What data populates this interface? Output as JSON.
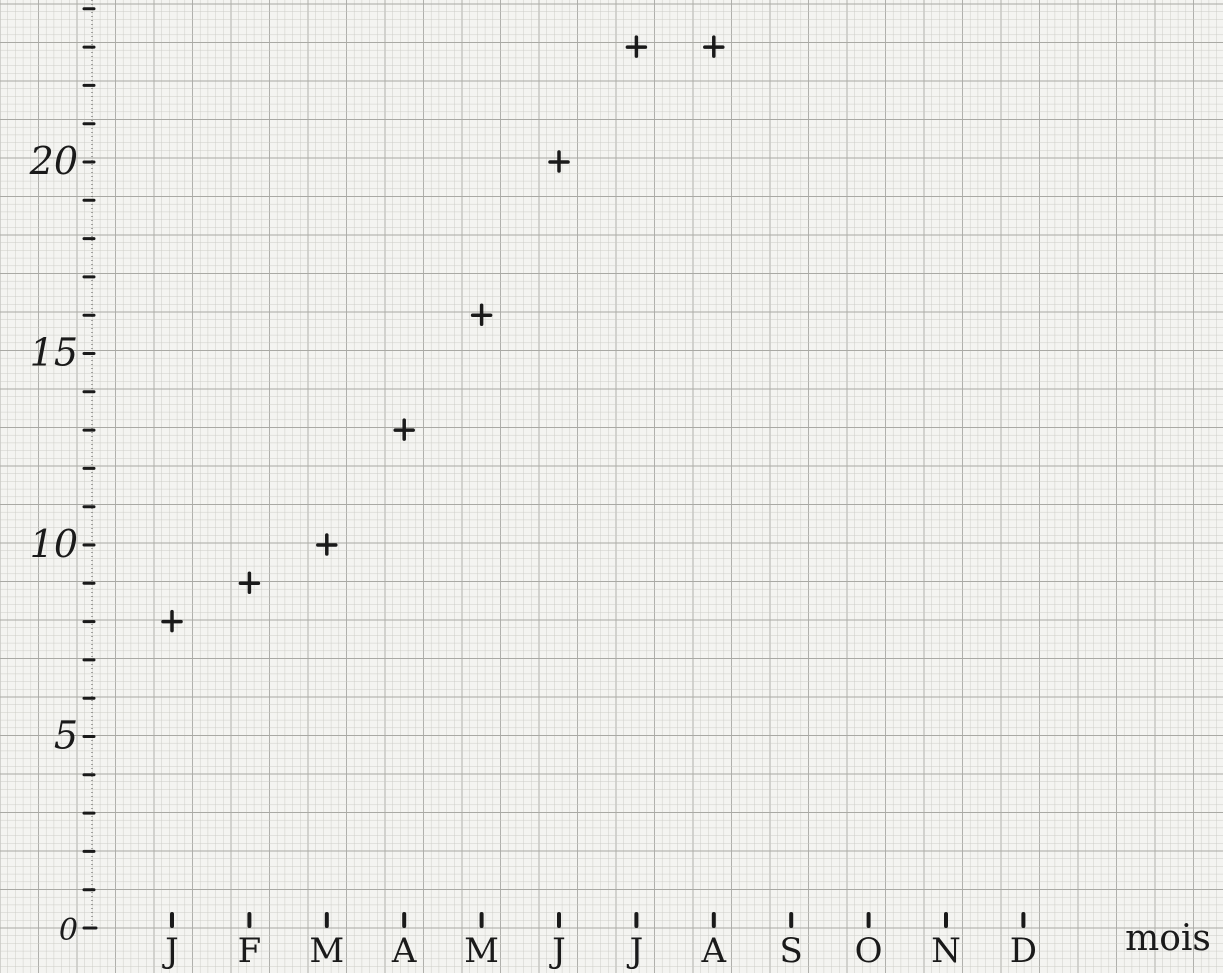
{
  "chart_data": {
    "type": "scatter",
    "title": "",
    "xlabel": "mois",
    "ylabel": "",
    "categories": [
      "J",
      "F",
      "M",
      "A",
      "M",
      "J",
      "J",
      "A",
      "S",
      "O",
      "N",
      "D"
    ],
    "values": [
      8,
      9,
      10,
      13,
      16,
      20,
      23,
      23,
      null,
      null,
      null,
      null
    ],
    "y_ticks": [
      0,
      5,
      10,
      15,
      20
    ],
    "ylim": [
      0,
      24
    ],
    "marker": "+",
    "grid": true,
    "colors": {
      "ink": "#1a1a1a",
      "grid_minor": "#c9c9c4",
      "grid_major": "#a9a9a4",
      "paper": "#f4f4f1"
    }
  }
}
